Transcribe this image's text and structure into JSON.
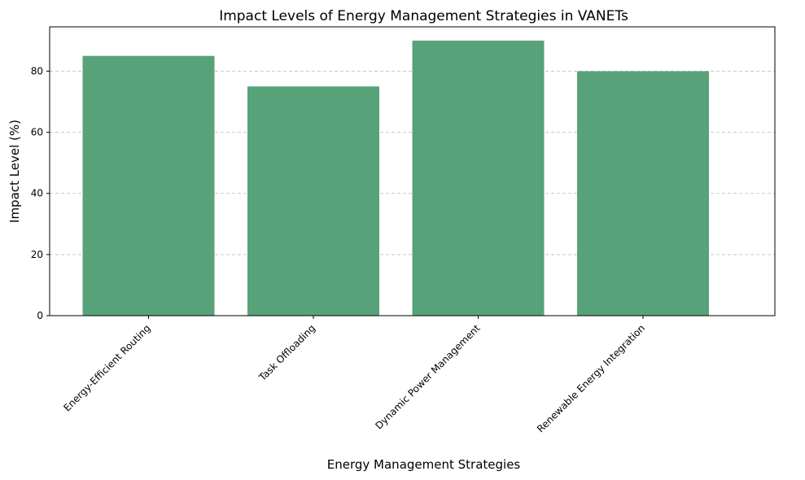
{
  "chart_data": {
    "type": "bar",
    "title": "Impact Levels of Energy Management Strategies in VANETs",
    "xlabel": "Energy Management Strategies",
    "ylabel": "Impact Level (%)",
    "categories": [
      "Energy-Efficient Routing",
      "Task Offloading",
      "Dynamic Power Management",
      "Renewable Energy Integration"
    ],
    "values": [
      85,
      75,
      90,
      80
    ],
    "ylim": [
      0,
      94.5
    ],
    "yticks": [
      0,
      20,
      40,
      60,
      80
    ],
    "grid": "y-dashed",
    "bar_color": "#58a27a",
    "grid_color": "#c8c8c8"
  }
}
